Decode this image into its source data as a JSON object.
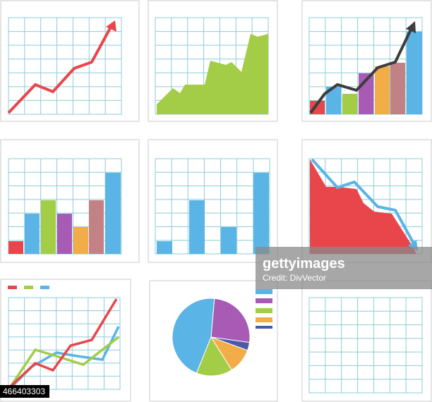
{
  "watermark": {
    "brand": "gettyimages",
    "credit": "Credit: DivVector",
    "id": "466403303"
  }
}
